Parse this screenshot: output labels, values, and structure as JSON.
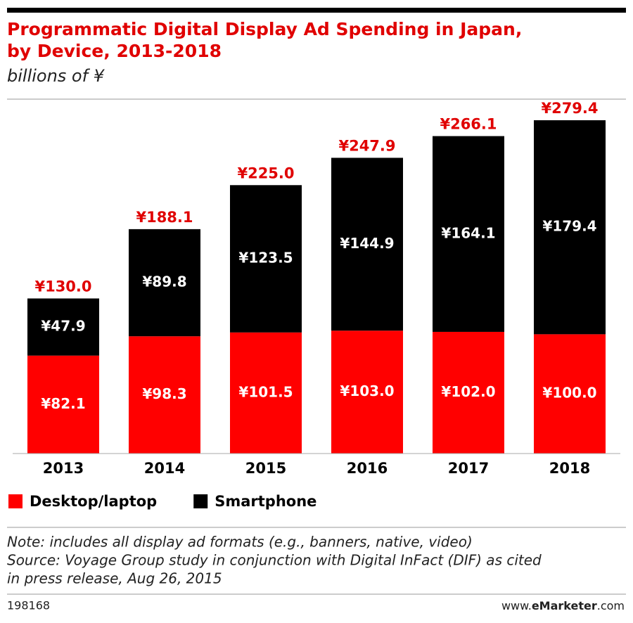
{
  "chart_data": {
    "type": "stacked_bar",
    "title": [
      "Programmatic Digital Display Ad Spending in Japan,",
      "by Device, 2013-2018"
    ],
    "subtitle": "billions of ¥",
    "categories": [
      "2013",
      "2014",
      "2015",
      "2016",
      "2017",
      "2018"
    ],
    "series": [
      {
        "name": "Desktop/laptop",
        "color": "#ff0000",
        "values": [
          82.1,
          98.3,
          101.5,
          103.0,
          102.0,
          100.0
        ],
        "value_labels": [
          "¥82.1",
          "¥98.3",
          "¥101.5",
          "¥103.0",
          "¥102.0",
          "¥100.0"
        ]
      },
      {
        "name": "Smartphone",
        "color": "#000000",
        "values": [
          47.9,
          89.8,
          123.5,
          144.9,
          164.1,
          179.4
        ],
        "value_labels": [
          "¥47.9",
          "¥89.8",
          "¥123.5",
          "¥144.9",
          "¥164.1",
          "¥179.4"
        ]
      }
    ],
    "total_labels": [
      "¥130.0",
      "¥188.1",
      "¥225.0",
      "¥247.9",
      "¥266.1",
      "¥279.4"
    ],
    "notes": [
      "Note: includes all display ad formats (e.g., banners, native, video)",
      "Source: Voyage Group study in conjunction with Digital InFact (DIF) as cited",
      "in press release, Aug 26, 2015"
    ],
    "chart_id": "198168",
    "site": [
      "www.",
      "eMarketer",
      ".com"
    ]
  }
}
